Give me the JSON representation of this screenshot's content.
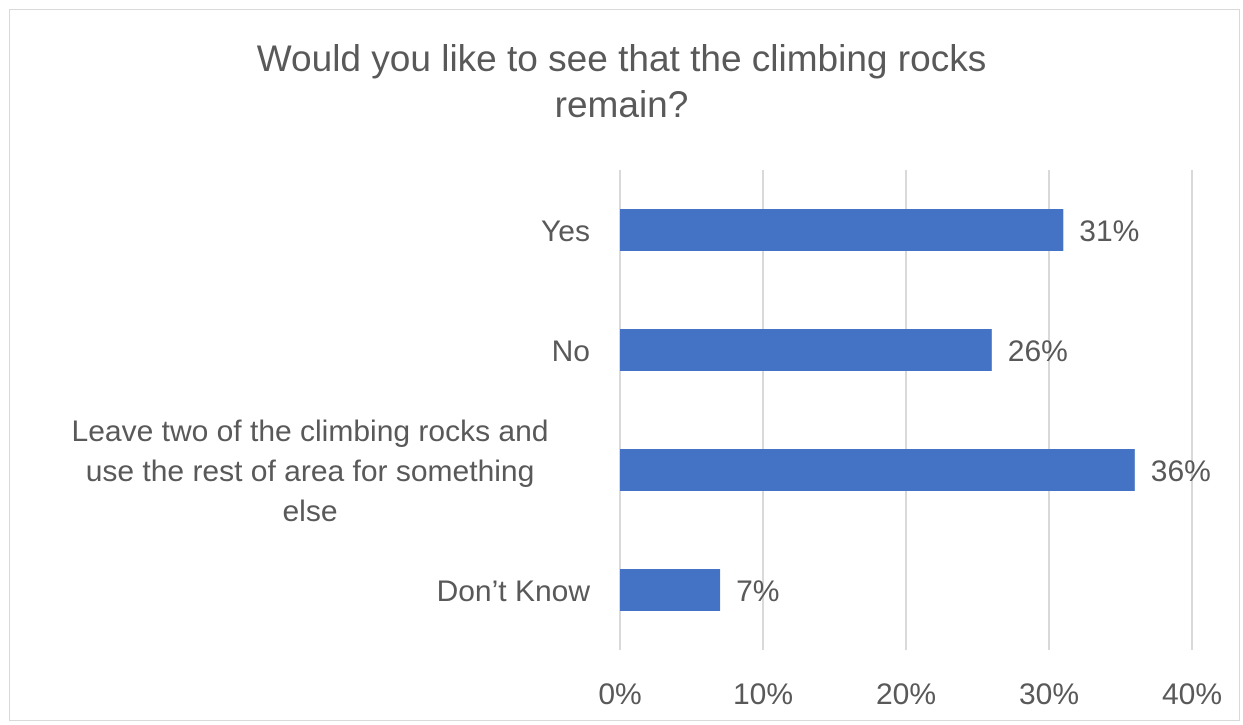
{
  "chart_data": {
    "type": "bar",
    "orientation": "horizontal",
    "title_lines": [
      "Would you like to see that the climbing rocks",
      "remain?"
    ],
    "categories": [
      [
        "Yes"
      ],
      [
        "No"
      ],
      [
        "Leave two of the climbing rocks and",
        "use the rest of area for something",
        "else"
      ],
      [
        "Don’t Know"
      ]
    ],
    "values": [
      31,
      26,
      36,
      7
    ],
    "data_labels": [
      "31%",
      "26%",
      "36%",
      "7%"
    ],
    "x_ticks": [
      "0%",
      "10%",
      "20%",
      "30%",
      "40%"
    ],
    "xlim": [
      0,
      40
    ],
    "grid": true,
    "legend": false,
    "bar_color": "#4472c4",
    "grid_color": "#d9d9d9",
    "text_color": "#595959"
  }
}
